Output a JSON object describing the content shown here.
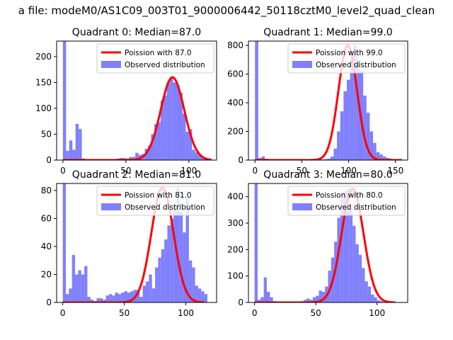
{
  "figure": {
    "suptitle": "a file: modeM0/AS1C09_003T01_9000006442_50118cztM0_level2_quad_clean"
  },
  "colors": {
    "hist": "#8080ff",
    "fit": "#ff0000",
    "axis": "#000000",
    "background": "#ffffff"
  },
  "chart_data": [
    {
      "type": "bar",
      "title": "Quadrant 0: Median=87.0",
      "xlim": [
        -5,
        122
      ],
      "ylim": [
        0,
        230
      ],
      "xticks": [
        0,
        50,
        100
      ],
      "yticks": [
        0,
        50,
        100,
        150,
        200
      ],
      "legend": [
        "Poission with 87.0",
        "Observed distribution"
      ],
      "legend_position": "upper-right",
      "hist": {
        "bin_start": 0,
        "bin_width": 2.5,
        "counts": [
          230,
          18,
          38,
          20,
          70,
          60,
          3,
          1,
          1,
          1,
          1,
          1,
          1,
          1,
          1,
          1,
          2,
          3,
          4,
          4,
          3,
          6,
          6,
          14,
          10,
          12,
          22,
          28,
          50,
          70,
          73,
          115,
          125,
          150,
          160,
          150,
          145,
          130,
          90,
          55,
          60,
          20,
          15,
          10,
          6,
          3,
          2
        ]
      },
      "fit": {
        "name": "Poission with 87.0",
        "mean": 87,
        "x_start": 0,
        "x_end": 118
      }
    },
    {
      "type": "bar",
      "title": "Quadrant 1: Median=99.0",
      "xlim": [
        -7,
        163
      ],
      "ylim": [
        0,
        830
      ],
      "xticks": [
        0,
        50,
        100,
        150
      ],
      "yticks": [
        0,
        200,
        400,
        600,
        800
      ],
      "legend": [
        "Poission with 99.0",
        "Observed distribution"
      ],
      "legend_position": "upper-right",
      "hist": {
        "bin_start": 0,
        "bin_width": 3.5,
        "counts": [
          830,
          15,
          25,
          10,
          3,
          2,
          1,
          1,
          1,
          1,
          1,
          1,
          1,
          1,
          1,
          1,
          1,
          1,
          2,
          3,
          4,
          6,
          10,
          25,
          80,
          200,
          340,
          480,
          560,
          700,
          800,
          700,
          620,
          450,
          330,
          200,
          120,
          55,
          40,
          25,
          15,
          10,
          6,
          3
        ]
      },
      "fit": {
        "name": "Poission with 99.0",
        "mean": 99,
        "x_start": 0,
        "x_end": 157
      }
    },
    {
      "type": "bar",
      "title": "Quadrant 2: Median=81.0",
      "xlim": [
        -5,
        125
      ],
      "ylim": [
        0,
        85
      ],
      "xticks": [
        0,
        50,
        100
      ],
      "yticks": [
        0,
        20,
        40,
        60,
        80
      ],
      "legend": [
        "Poission with 81.0",
        "Observed distribution"
      ],
      "legend_position": "upper-right",
      "hist": {
        "bin_start": 0,
        "bin_width": 2.5,
        "counts": [
          85,
          6,
          10,
          34,
          20,
          23,
          20,
          26,
          4,
          2,
          1,
          3,
          3,
          2,
          5,
          6,
          5,
          7,
          6,
          7,
          8,
          7,
          8,
          9,
          9,
          4,
          12,
          15,
          20,
          10,
          25,
          32,
          38,
          45,
          55,
          60,
          70,
          82,
          65,
          50,
          75,
          30,
          25,
          12,
          10,
          8,
          6
        ]
      },
      "fit": {
        "name": "Poission with 81.0",
        "mean": 81,
        "x_start": 0,
        "x_end": 115
      }
    },
    {
      "type": "bar",
      "title": "Quadrant 3: Median=80.0",
      "xlim": [
        -5,
        125
      ],
      "ylim": [
        0,
        450
      ],
      "xticks": [
        0,
        50,
        100
      ],
      "yticks": [
        0,
        100,
        200,
        300,
        400
      ],
      "legend": [
        "Poission with 80.0",
        "Observed distribution"
      ],
      "legend_position": "upper-right",
      "hist": {
        "bin_start": 0,
        "bin_width": 2.5,
        "counts": [
          450,
          10,
          20,
          95,
          40,
          20,
          5,
          1,
          1,
          1,
          1,
          1,
          1,
          1,
          2,
          5,
          10,
          15,
          10,
          20,
          25,
          45,
          40,
          60,
          120,
          170,
          230,
          320,
          390,
          420,
          430,
          350,
          290,
          220,
          180,
          130,
          80,
          60,
          30,
          20,
          8,
          5
        ]
      },
      "fit": {
        "name": "Poission with 80.0",
        "mean": 80,
        "x_start": 0,
        "x_end": 115
      }
    }
  ]
}
